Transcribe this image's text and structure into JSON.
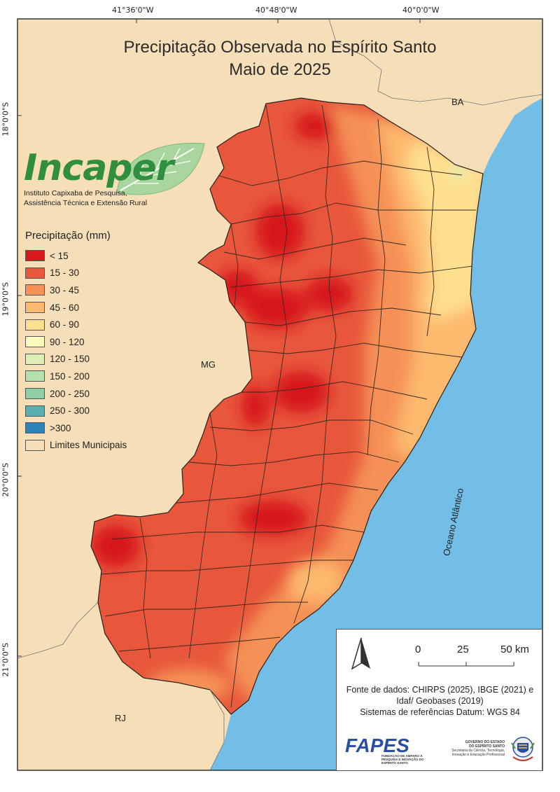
{
  "title": {
    "line1": "Precipitação Observada no Espírito Santo",
    "line2": "Maio de 2025"
  },
  "coordinates": {
    "top": [
      "41°36'0\"W",
      "40°48'0\"W",
      "40°0'0\"W"
    ],
    "left": [
      "18°0'0\"S",
      "19°0'0\"S",
      "20°0'0\"S",
      "21°0'0\"S"
    ]
  },
  "labels": {
    "ba": "BA",
    "mg": "MG",
    "rj": "RJ",
    "ocean": "Oceano Atlântico"
  },
  "logo": {
    "name_part1": "Inca",
    "name_part2": "per",
    "subtitle_line1": "Instituto Capixaba de Pesquisa,",
    "subtitle_line2": "Assistência Técnica e Extensão Rural"
  },
  "legend": {
    "title": "Precipitação (mm)",
    "items": [
      {
        "label": "< 15",
        "color": "#d7191c"
      },
      {
        "label": "15 - 30",
        "color": "#e8573b"
      },
      {
        "label": "30 - 45",
        "color": "#f59157"
      },
      {
        "label": "45 - 60",
        "color": "#fdb96d"
      },
      {
        "label": "60 - 90",
        "color": "#fedf8f"
      },
      {
        "label": "90 - 120",
        "color": "#ffffbf"
      },
      {
        "label": "120 - 150",
        "color": "#dcf0b6"
      },
      {
        "label": "150 - 200",
        "color": "#b4e1ae"
      },
      {
        "label": "200 - 250",
        "color": "#8fcfa6"
      },
      {
        "label": "250 - 300",
        "color": "#5aaeb0"
      },
      {
        "label": ">300",
        "color": "#2b83ba"
      },
      {
        "label": "Limites Municipais",
        "color": "#f5deb8"
      }
    ]
  },
  "scale_bar": {
    "labels": [
      "0",
      "25",
      "50 km"
    ]
  },
  "source": {
    "line1": "Fonte de dados: CHIRPS (2025), IBGE (2021) e",
    "line2": "Idaf/ Geobases (2019)",
    "line3": "Sistemas de referências Datum: WGS 84"
  },
  "fapes": {
    "name": "FAPES",
    "subtitle": "FUNDAÇÃO DE AMPARO À PESQUISA E INOVAÇÃO DO ESPÍRITO SANTO"
  },
  "government": {
    "title_line1": "GOVERNO DO ESTADO",
    "title_line2": "DO ESPÍRITO SANTO",
    "dept_line1": "Secretaria da Ciência, Tecnologia,",
    "dept_line2": "Inovação e Educação Profissional"
  },
  "colors": {
    "land": "#f5deb8",
    "ocean": "#72bee6",
    "frame": "#333333"
  }
}
